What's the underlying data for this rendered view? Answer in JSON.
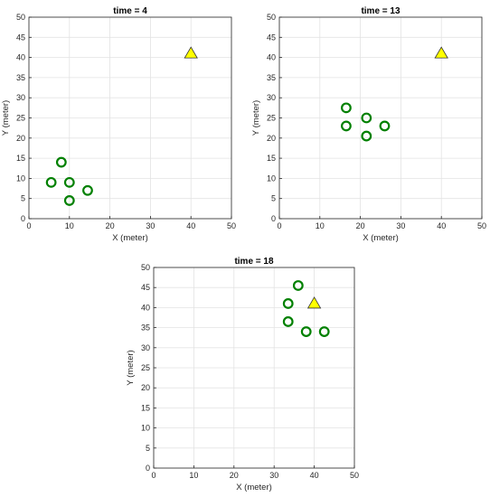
{
  "colors": {
    "agent_stroke": "#008000",
    "target_fill": "#ffff00",
    "target_stroke": "#333333"
  },
  "chart_data": [
    {
      "type": "scatter",
      "title": "time = 4",
      "xlabel": "X (meter)",
      "ylabel": "Y (meter)",
      "xlim": [
        0,
        50
      ],
      "ylim": [
        0,
        50
      ],
      "xticks": [
        0,
        10,
        20,
        30,
        40,
        50
      ],
      "yticks": [
        0,
        5,
        10,
        15,
        20,
        25,
        30,
        35,
        40,
        45,
        50
      ],
      "grid": true,
      "agents": [
        [
          8,
          14
        ],
        [
          5.5,
          9
        ],
        [
          10,
          9
        ],
        [
          14.5,
          7
        ],
        [
          10,
          4.5
        ]
      ],
      "target": [
        40,
        41
      ]
    },
    {
      "type": "scatter",
      "title": "time = 13",
      "xlabel": "X (meter)",
      "ylabel": "Y (meter)",
      "xlim": [
        0,
        50
      ],
      "ylim": [
        0,
        50
      ],
      "xticks": [
        0,
        10,
        20,
        30,
        40,
        50
      ],
      "yticks": [
        0,
        5,
        10,
        15,
        20,
        25,
        30,
        35,
        40,
        45,
        50
      ],
      "grid": true,
      "agents": [
        [
          16.5,
          27.5
        ],
        [
          21.5,
          25
        ],
        [
          16.5,
          23
        ],
        [
          26,
          23
        ],
        [
          21.5,
          20.5
        ]
      ],
      "target": [
        40,
        41
      ]
    },
    {
      "type": "scatter",
      "title": "time = 18",
      "xlabel": "X (meter)",
      "ylabel": "Y (meter)",
      "xlim": [
        0,
        50
      ],
      "ylim": [
        0,
        50
      ],
      "xticks": [
        0,
        10,
        20,
        30,
        40,
        50
      ],
      "yticks": [
        0,
        5,
        10,
        15,
        20,
        25,
        30,
        35,
        40,
        45,
        50
      ],
      "grid": true,
      "agents": [
        [
          36,
          45.5
        ],
        [
          33.5,
          41
        ],
        [
          33.5,
          36.5
        ],
        [
          38,
          34
        ],
        [
          42.5,
          34
        ]
      ],
      "target": [
        40,
        41
      ]
    }
  ]
}
